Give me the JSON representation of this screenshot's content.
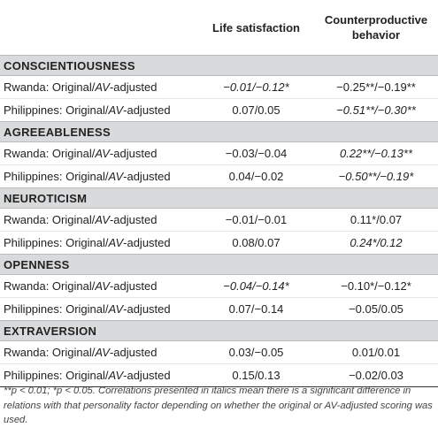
{
  "header": {
    "col2": "Life satisfaction",
    "col3_line1": "Counterproductive",
    "col3_line2": "behavior"
  },
  "row_label": {
    "rwanda_prefix": "Rwanda: Original/",
    "philippines_prefix": "Philippines: Original/",
    "av": "AV",
    "suffix": "-adjusted"
  },
  "sections": [
    {
      "name": "CONSCIENTIOUSNESS",
      "rwanda": {
        "life": "−0.01/−0.12*",
        "life_italic": true,
        "cb": "−0.25**/−0.19**",
        "cb_italic": false
      },
      "philippines": {
        "life": "0.07/0.05",
        "life_italic": false,
        "cb": "−0.51**/−0.30**",
        "cb_italic": true
      }
    },
    {
      "name": "AGREEABLENESS",
      "rwanda": {
        "life": "−0.03/−0.04",
        "life_italic": false,
        "cb": "0.22**/−0.13**",
        "cb_italic": true
      },
      "philippines": {
        "life": "0.04/−0.02",
        "life_italic": false,
        "cb": "−0.50**/−0.19*",
        "cb_italic": true
      }
    },
    {
      "name": "NEUROTICISM",
      "rwanda": {
        "life": "−0.01/−0.01",
        "life_italic": false,
        "cb": "0.11*/0.07",
        "cb_italic": false
      },
      "philippines": {
        "life": "0.08/0.07",
        "life_italic": false,
        "cb": "0.24*/0.12",
        "cb_italic": true
      }
    },
    {
      "name": "OPENNESS",
      "rwanda": {
        "life": "−0.04/−0.14*",
        "life_italic": true,
        "cb": "−0.10*/−0.12*",
        "cb_italic": false
      },
      "philippines": {
        "life": "0.07/−0.14",
        "life_italic": false,
        "cb": "−0.05/0.05",
        "cb_italic": false
      }
    },
    {
      "name": "EXTRAVERSION",
      "rwanda": {
        "life": "0.03/−0.05",
        "life_italic": false,
        "cb": "0.01/0.01",
        "cb_italic": false
      },
      "philippines": {
        "life": "0.15/0.13",
        "life_italic": false,
        "cb": "−0.02/0.03",
        "cb_italic": false
      }
    }
  ],
  "footnote": "**p < 0.01; *p < 0.05. Correlations presented in italics mean there is a significant difference in relations with that personality factor depending on whether the original or AV-adjusted scoring was used."
}
